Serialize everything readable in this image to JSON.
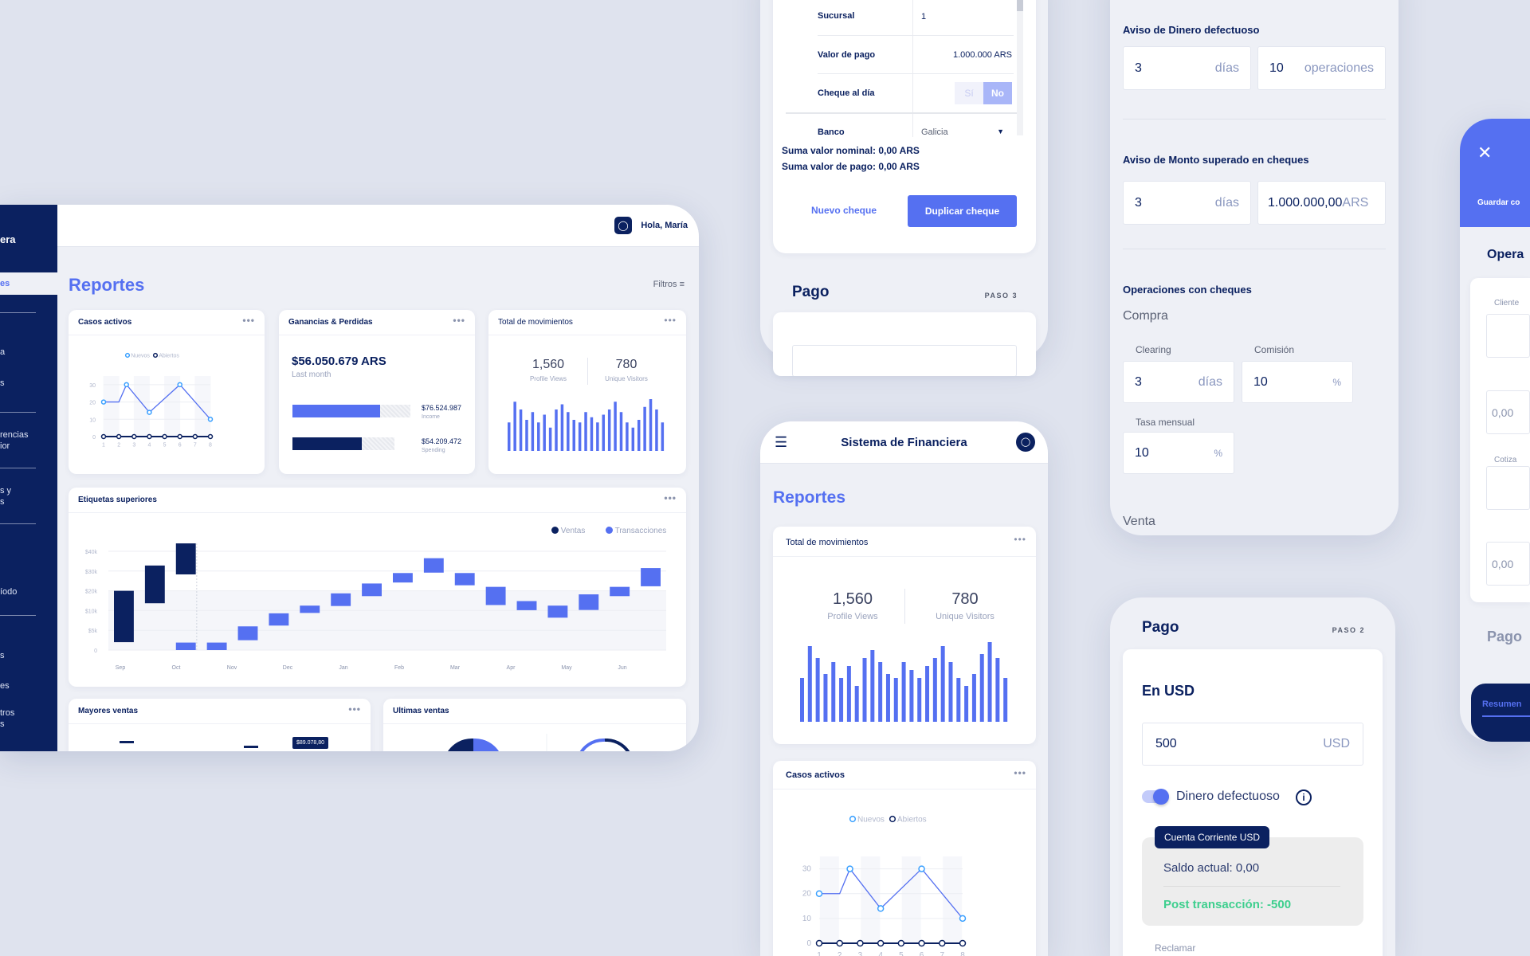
{
  "dashboard": {
    "sidebar": {
      "brand_fragment": "era",
      "items": [
        "es",
        "a",
        "s",
        "rencias\nior",
        "s y\ns",
        "íodo",
        "s",
        "es",
        "tros\ns"
      ]
    },
    "header": {
      "greeting": "Hola, María"
    },
    "title": "Reportes",
    "filters_label": "Filtros",
    "casos": {
      "title": "Casos activos",
      "legend": [
        "Nuevos",
        "Abiertos"
      ]
    },
    "ganancias": {
      "title": "Ganancias & Perdidas",
      "amount": "$56.050.679 ARS",
      "period": "Last month",
      "income_value": "$76.524.987",
      "income_label": "Income",
      "income_fill": 0.74,
      "spending_value": "$54.209.472",
      "spending_label": "Spending",
      "spending_fill": 0.68
    },
    "movimientos": {
      "title": "Total de movimientos",
      "views": "1,560",
      "views_label": "Profile Views",
      "visitors": "780",
      "visitors_label": "Unique Visitors"
    },
    "etiquetas": {
      "title": "Etiquetas superiores",
      "legend": [
        "Ventas",
        "Transacciones"
      ]
    },
    "mayores": {
      "title": "Mayores ventas",
      "tooltip": "$89.078,80"
    },
    "ultimas": {
      "title": "Ultimas ventas"
    }
  },
  "cheque": {
    "rows": [
      {
        "label": "Sucursal",
        "value": "1"
      },
      {
        "label": "Valor de pago",
        "value": "1.000.000 ARS"
      },
      {
        "label": "Cheque al día",
        "yes": "Sí",
        "no": "No"
      },
      {
        "label": "Banco",
        "value": "Galicia"
      }
    ],
    "sum_nominal": "Suma valor nominal: 0,00 ARS",
    "sum_pago": "Suma valor de pago: 0,00 ARS",
    "new_button": "Nuevo cheque",
    "duplicate_button": "Duplicar cheque",
    "pago_title": "Pago",
    "pago_step": "PASO 3"
  },
  "mobile": {
    "app_title": "Sistema de Financiera",
    "title": "Reportes",
    "movimientos": {
      "title": "Total de movimientos",
      "views": "1,560",
      "views_label": "Profile Views",
      "visitors": "780",
      "visitors_label": "Unique Visitors"
    },
    "casos": {
      "title": "Casos activos",
      "legend": [
        "Nuevos",
        "Abiertos"
      ]
    }
  },
  "settings": {
    "dinero": {
      "title": "Aviso de Dinero defectuoso",
      "days": "3",
      "days_unit": "días",
      "ops": "10",
      "ops_unit": "operaciones"
    },
    "monto": {
      "title": "Aviso de Monto superado en cheques",
      "days": "3",
      "days_unit": "días",
      "amount": "1.000.000,00",
      "amount_unit": "ARS"
    },
    "operaciones": {
      "title": "Operaciones con cheques",
      "compra": "Compra",
      "clearing_label": "Clearing",
      "clearing": "3",
      "clearing_unit": "días",
      "comision_label": "Comisión",
      "comision": "10",
      "comision_unit": "%",
      "tasa_label": "Tasa mensual",
      "tasa": "10",
      "tasa_unit": "%",
      "venta": "Venta"
    }
  },
  "pago": {
    "title": "Pago",
    "step": "PASO 2",
    "section": "En USD",
    "amount": "500",
    "currency": "USD",
    "toggle_label": "Dinero defectuoso",
    "toggle_on": true,
    "account_badge": "Cuenta Corriente USD",
    "saldo": "Saldo actual: 0,00",
    "post": "Post transacción: -500",
    "reclamar": "Reclamar"
  },
  "operacion": {
    "save_label": "Guardar co",
    "title": "Opera",
    "cliente_label": "Cliente",
    "value1": "0,00",
    "cotiza_label": "Cotiza",
    "value2": "0,00",
    "pago": "Pago",
    "resumen": "Resumen"
  },
  "colors": {
    "navy": "#0b2160",
    "blue": "#5570f1",
    "green": "#3ecf8e"
  },
  "chart_data": [
    {
      "type": "line",
      "title": "Casos activos",
      "x_ticks": [
        1,
        2,
        3,
        4,
        5,
        6,
        7,
        8
      ],
      "y_ticks": [
        0,
        10,
        20,
        30
      ],
      "ylim": [
        0,
        35
      ],
      "series": [
        {
          "name": "Nuevos",
          "x": [
            1,
            2,
            2.5,
            4,
            6,
            8
          ],
          "y": [
            20,
            20,
            30,
            14,
            30,
            10
          ],
          "markers": [
            true,
            false,
            true,
            true,
            true,
            true
          ]
        },
        {
          "name": "Abiertos",
          "x": [
            1,
            2,
            3,
            4,
            5,
            6,
            7,
            8
          ],
          "y": [
            0,
            0,
            0,
            0,
            0,
            0,
            0,
            0
          ]
        }
      ]
    },
    {
      "type": "bar",
      "title": "Total de movimientos",
      "values": [
        55,
        95,
        80,
        60,
        75,
        55,
        70,
        45,
        80,
        90,
        75,
        60,
        55,
        75,
        65,
        55,
        70,
        80,
        95,
        75,
        55,
        45,
        60,
        85,
        100,
        80,
        55
      ]
    },
    {
      "type": "bar",
      "title": "Etiquetas superiores",
      "subtype": "floating",
      "y_ticks": [
        0,
        5,
        10,
        20,
        30,
        40
      ],
      "y_tick_labels": [
        "0",
        "$5k",
        "$10k",
        "$20k",
        "$30k",
        "$40k"
      ],
      "x_labels": [
        "Sep",
        "Oct",
        "Nov",
        "Dec",
        "Jan",
        "Feb",
        "Mar",
        "Apr",
        "May",
        "Jun"
      ],
      "columns": 18,
      "bars": [
        {
          "series": "Ventas",
          "col": 0,
          "low": 2,
          "high": 20
        },
        {
          "series": "Ventas",
          "col": 1,
          "low": 13.7,
          "high": 32.8
        },
        {
          "series": "Ventas",
          "col": 2,
          "low": 28.3,
          "high": 44
        },
        {
          "series": "Transacciones",
          "col": 2,
          "low": 0,
          "high": 1.9
        },
        {
          "series": "Transacciones",
          "col": 3,
          "low": 0,
          "high": 1.9
        },
        {
          "series": "Transacciones",
          "col": 4,
          "low": 2.5,
          "high": 6
        },
        {
          "series": "Transacciones",
          "col": 5,
          "low": 6.2,
          "high": 9.3
        },
        {
          "series": "Transacciones",
          "col": 6,
          "low": 9.4,
          "high": 12.5
        },
        {
          "series": "Transacciones",
          "col": 7,
          "low": 12.3,
          "high": 18.7
        },
        {
          "series": "Transacciones",
          "col": 8,
          "low": 17.3,
          "high": 23.7
        },
        {
          "series": "Transacciones",
          "col": 9,
          "low": 24.2,
          "high": 29
        },
        {
          "series": "Transacciones",
          "col": 10,
          "low": 29.2,
          "high": 36.5
        },
        {
          "series": "Transacciones",
          "col": 11,
          "low": 22.8,
          "high": 29
        },
        {
          "series": "Transacciones",
          "col": 12,
          "low": 12.8,
          "high": 22
        },
        {
          "series": "Transacciones",
          "col": 13,
          "low": 10.2,
          "high": 14.8
        },
        {
          "series": "Transacciones",
          "col": 14,
          "low": 8.2,
          "high": 12.5
        },
        {
          "series": "Transacciones",
          "col": 15,
          "low": 10.3,
          "high": 18.2
        },
        {
          "series": "Transacciones",
          "col": 16,
          "low": 17.3,
          "high": 22
        },
        {
          "series": "Transacciones",
          "col": 17,
          "low": 22.3,
          "high": 31.5
        }
      ]
    }
  ]
}
